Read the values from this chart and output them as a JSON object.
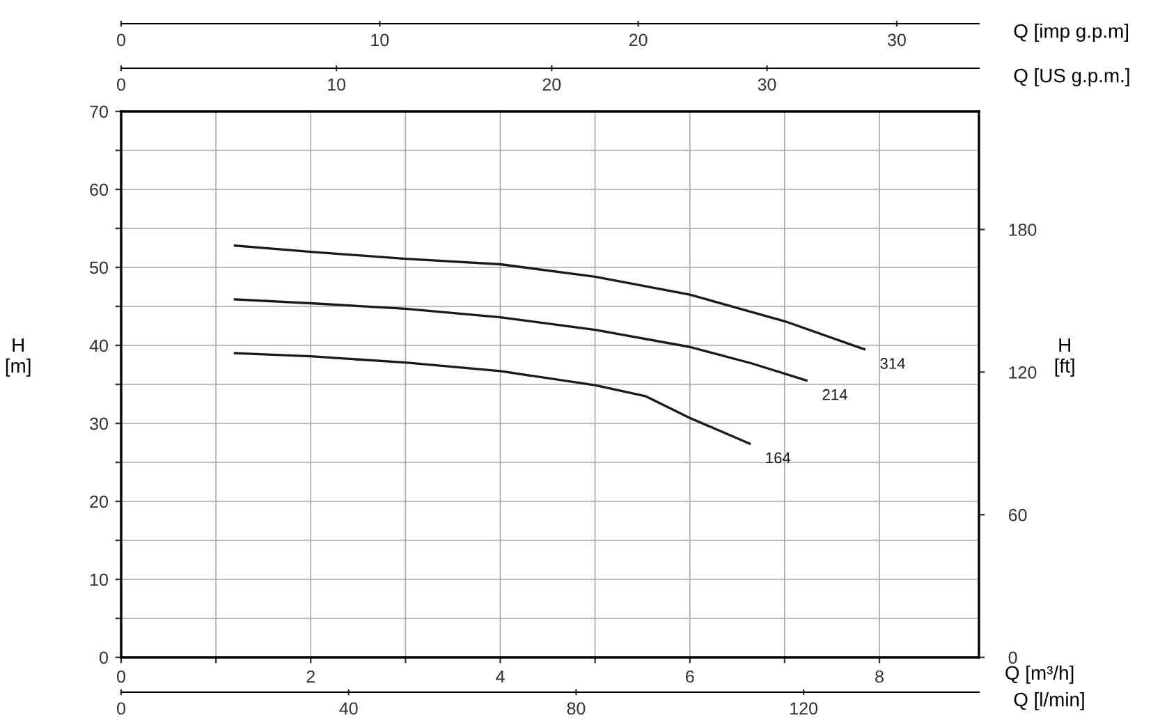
{
  "chart_data": {
    "type": "line",
    "xlabel": "Q [m³/h]",
    "ylabel": "H\n[m]",
    "y2label": "H\n[ft]",
    "x2label": "Q [US g.p.m.]",
    "xlim": [
      0,
      9.05
    ],
    "ylim": [
      0,
      70
    ],
    "y2lim": [
      0,
      229.66
    ],
    "x2lim": [
      0,
      39.85
    ],
    "xticks": [
      0,
      {
        "value": 1,
        "label": null
      },
      2,
      {
        "value": 3,
        "label": null
      },
      4,
      {
        "value": 5,
        "label": null
      },
      6,
      {
        "value": 7,
        "label": null
      },
      8
    ],
    "yticks": [
      0,
      {
        "value": 5,
        "label": null
      },
      10,
      {
        "value": 15,
        "label": null
      },
      20,
      {
        "value": 25,
        "label": null
      },
      30,
      {
        "value": 35,
        "label": null
      },
      40,
      {
        "value": 45,
        "label": null
      },
      50,
      {
        "value": 55,
        "label": null
      },
      60,
      {
        "value": 65,
        "label": null
      },
      70
    ],
    "y2ticks": [
      0,
      60,
      120,
      180
    ],
    "x2ticks": [
      0,
      10,
      20,
      30
    ],
    "grid": true,
    "legend": false,
    "marker": "none",
    "line_style": "solid",
    "series": [
      {
        "name": "314",
        "color": "#1a1a1a",
        "x": [
          1.2,
          2,
          3,
          4,
          5,
          6,
          7,
          7.84
        ],
        "values": [
          52.8,
          52.0,
          51.1,
          50.4,
          48.8,
          46.5,
          43.1,
          39.5
        ]
      },
      {
        "name": "214",
        "color": "#1a1a1a",
        "x": [
          1.2,
          2,
          3,
          4,
          5,
          6,
          6.65,
          7.23
        ],
        "values": [
          45.9,
          45.4,
          44.7,
          43.6,
          42.0,
          39.8,
          37.7,
          35.5
        ]
      },
      {
        "name": "164",
        "color": "#1a1a1a",
        "x": [
          1.2,
          2,
          3,
          4,
          5,
          5.53,
          6,
          6.63
        ],
        "values": [
          39.0,
          38.6,
          37.8,
          36.7,
          34.9,
          33.5,
          30.7,
          27.4
        ]
      }
    ],
    "annotations": [
      "0",
      "10",
      "20",
      "30",
      "Q [imp g.p.m]",
      "0",
      "40",
      "80",
      "120",
      "Q [l/min]"
    ]
  }
}
